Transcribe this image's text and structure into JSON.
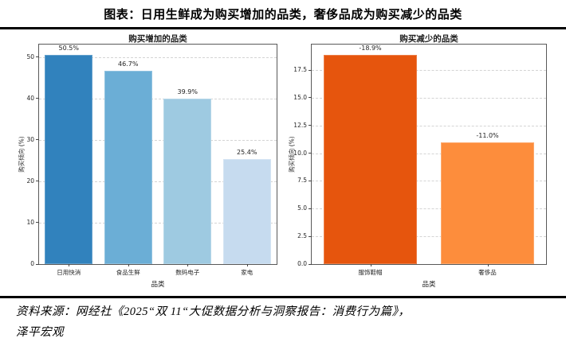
{
  "header": {
    "title": "图表：日用生鲜成为购买增加的品类，奢侈品成为购买减少的品类"
  },
  "footer": {
    "source_line1": "资料来源：网经社《2025“双 11“大促数据分析与洞察报告：消费行为篇》，",
    "source_line2": "泽平宏观"
  },
  "chart_data": [
    {
      "type": "bar",
      "title": "购买增加的品类",
      "xlabel": "品类",
      "ylabel": "购买倾向 (%)",
      "categories": [
        "日用快消",
        "食品生鲜",
        "数码电子",
        "家电"
      ],
      "values": [
        50.5,
        46.7,
        39.9,
        25.4
      ],
      "labels": [
        "50.5%",
        "46.7%",
        "39.9%",
        "25.4%"
      ],
      "bar_colors": [
        "#3182bd",
        "#6baed6",
        "#9ecae1",
        "#c6dbef"
      ],
      "ylim": [
        0,
        53
      ],
      "yticks": [
        0,
        10,
        20,
        30,
        40,
        50
      ],
      "ytick_labels": [
        "0",
        "10",
        "20",
        "30",
        "40",
        "50"
      ],
      "grid": "dashed-horizontal",
      "legend": "none"
    },
    {
      "type": "bar",
      "title": "购买减少的品类",
      "xlabel": "品类",
      "ylabel": "购买倾向 (%)",
      "categories": [
        "服饰鞋帽",
        "奢侈品"
      ],
      "values": [
        18.9,
        11.0
      ],
      "labels": [
        "-18.9%",
        "-11.0%"
      ],
      "bar_colors": [
        "#e6550d",
        "#fd8d3c"
      ],
      "ylim": [
        0,
        19.8
      ],
      "yticks": [
        0,
        2.5,
        5,
        7.5,
        10,
        12.5,
        15,
        17.5
      ],
      "ytick_labels": [
        "0.0",
        "2.5",
        "5.0",
        "7.5",
        "10.0",
        "12.5",
        "15.0",
        "17.5"
      ],
      "grid": "dashed-horizontal",
      "legend": "none"
    }
  ]
}
